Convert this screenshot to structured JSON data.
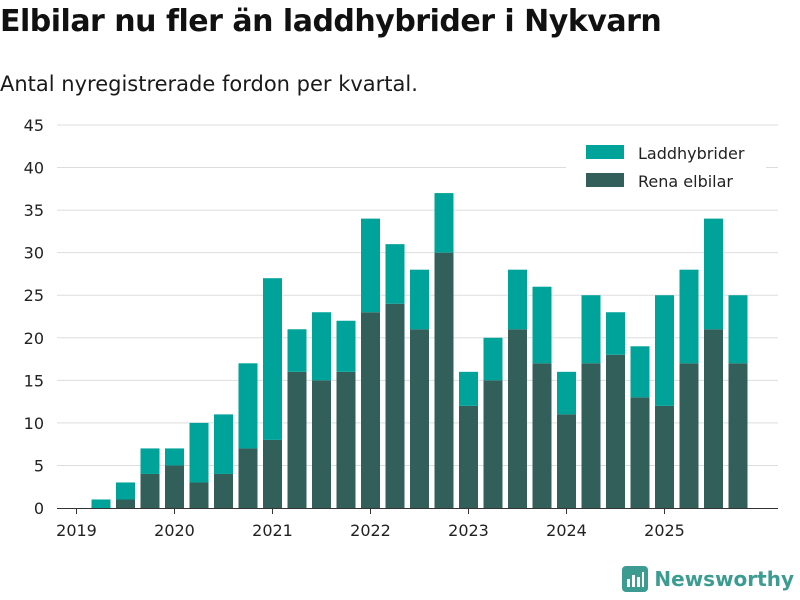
{
  "title": "Elbilar nu fler än laddhybrider i Nykvarn",
  "subtitle": "Antal nyregistrerade fordon per kvartal.",
  "brand": {
    "name": "Newsworthy",
    "icon": "newsworthy-logo-icon"
  },
  "colors": {
    "phev": "#00a39a",
    "bev": "#335f5a",
    "grid": "#dddddd",
    "axis": "#333333"
  },
  "chart_data": {
    "type": "bar",
    "stacked": true,
    "ylim": [
      0,
      45
    ],
    "yticks": [
      0,
      5,
      10,
      15,
      20,
      25,
      30,
      35,
      40,
      45
    ],
    "xtick_labels": [
      "2019",
      "2020",
      "2021",
      "2022",
      "2023",
      "2024",
      "2025"
    ],
    "legend": [
      "Laddhybrider",
      "Rena elbilar"
    ],
    "legend_position": "top-right",
    "categories": [
      "2019 Q1",
      "2019 Q2",
      "2019 Q3",
      "2019 Q4",
      "2020 Q1",
      "2020 Q2",
      "2020 Q3",
      "2020 Q4",
      "2021 Q1",
      "2021 Q2",
      "2021 Q3",
      "2021 Q4",
      "2022 Q1",
      "2022 Q2",
      "2022 Q3",
      "2022 Q4",
      "2023 Q1",
      "2023 Q2",
      "2023 Q3",
      "2023 Q4",
      "2024 Q1",
      "2024 Q2",
      "2024 Q3",
      "2024 Q4",
      "2025 Q1",
      "2025 Q2",
      "2025 Q3",
      "2025 Q4"
    ],
    "series": [
      {
        "name": "Rena elbilar",
        "values": [
          0,
          0,
          1,
          4,
          5,
          3,
          4,
          7,
          8,
          16,
          15,
          16,
          23,
          24,
          21,
          30,
          12,
          15,
          21,
          17,
          11,
          17,
          18,
          13,
          12,
          17,
          21,
          17
        ]
      },
      {
        "name": "Laddhybrider",
        "values": [
          0,
          1,
          2,
          3,
          2,
          7,
          7,
          10,
          19,
          5,
          8,
          6,
          11,
          7,
          7,
          7,
          4,
          5,
          7,
          9,
          5,
          8,
          5,
          6,
          13,
          11,
          13,
          8
        ]
      }
    ]
  }
}
